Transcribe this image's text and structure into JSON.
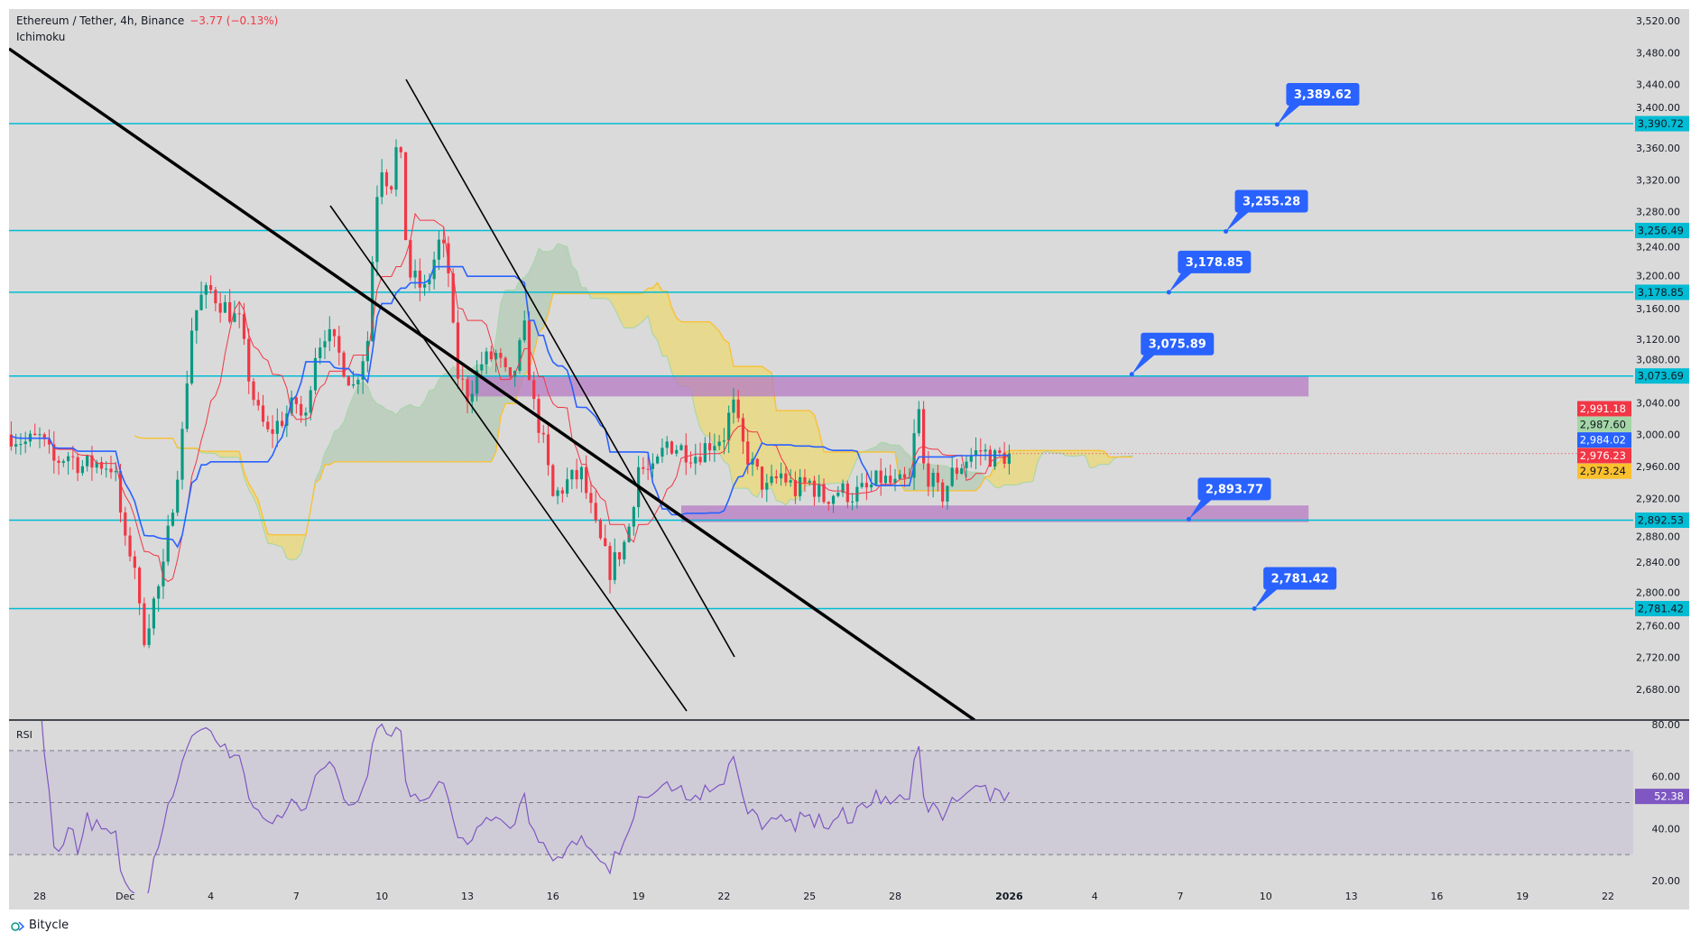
{
  "header": {
    "symbol": "Ethereum / Tether, 4h, Binance",
    "change": "−3.77 (−0.13%)",
    "indicator": "Ichimoku"
  },
  "rsi_pane": {
    "title": "RSI",
    "value_tag": "52.38"
  },
  "brand": {
    "name": "Bitycle",
    "icon": "bitycle-logo-icon"
  },
  "colors": {
    "up": "#089981",
    "down": "#f23645",
    "level": "#00bcd4",
    "callout": "#2962ff",
    "zone": "#b57bc4",
    "rsi": "#7e57c2",
    "tenkan": "#f23645",
    "kijun": "#2962ff",
    "spanA": "#a5d6a7",
    "spanB": "#fbc02d"
  },
  "chart_data": {
    "type": "candlestick",
    "timeframe": "4h",
    "x_start": "2025-11-27",
    "close_path": [
      [
        0,
        3000
      ],
      [
        0.5,
        2990
      ],
      [
        1,
        2995
      ],
      [
        1.5,
        2965
      ],
      [
        2,
        2975
      ],
      [
        2.5,
        2960
      ],
      [
        3,
        2965
      ],
      [
        3.6,
        2960
      ],
      [
        4,
        2860
      ],
      [
        4.3,
        2850
      ],
      [
        4.6,
        2740
      ],
      [
        5,
        2790
      ],
      [
        5.3,
        2820
      ],
      [
        5.6,
        2900
      ],
      [
        6,
        3000
      ],
      [
        6.3,
        3130
      ],
      [
        6.6,
        3170
      ],
      [
        7,
        3180
      ],
      [
        7.5,
        3160
      ],
      [
        8,
        3140
      ],
      [
        8.3,
        3080
      ],
      [
        8.6,
        3030
      ],
      [
        9,
        3000
      ],
      [
        9.5,
        3020
      ],
      [
        10,
        3040
      ],
      [
        10.3,
        3010
      ],
      [
        10.6,
        3100
      ],
      [
        11,
        3130
      ],
      [
        11.5,
        3100
      ],
      [
        12,
        3060
      ],
      [
        12.5,
        3120
      ],
      [
        12.8,
        3300
      ],
      [
        13,
        3340
      ],
      [
        13.3,
        3310
      ],
      [
        13.6,
        3380
      ],
      [
        13.8,
        3260
      ],
      [
        14,
        3200
      ],
      [
        14.5,
        3180
      ],
      [
        15,
        3240
      ],
      [
        15.3,
        3220
      ],
      [
        15.6,
        3080
      ],
      [
        16,
        3050
      ],
      [
        16.5,
        3090
      ],
      [
        17,
        3100
      ],
      [
        17.5,
        3060
      ],
      [
        18,
        3130
      ],
      [
        18.3,
        3040
      ],
      [
        18.6,
        3000
      ],
      [
        19,
        2920
      ],
      [
        19.5,
        2940
      ],
      [
        20,
        2950
      ],
      [
        20.5,
        2880
      ],
      [
        21,
        2830
      ],
      [
        21.3,
        2850
      ],
      [
        21.6,
        2870
      ],
      [
        22,
        2960
      ],
      [
        22.5,
        2950
      ],
      [
        23,
        2990
      ],
      [
        24,
        2975
      ],
      [
        24.5,
        2990
      ],
      [
        25,
        3000
      ],
      [
        25.3,
        3040
      ],
      [
        25.6,
        2990
      ],
      [
        26,
        2960
      ],
      [
        26.5,
        2930
      ],
      [
        27,
        2950
      ],
      [
        27.5,
        2930
      ],
      [
        28,
        2940
      ],
      [
        28.5,
        2920
      ],
      [
        29,
        2930
      ],
      [
        29.5,
        2925
      ],
      [
        30,
        2930
      ],
      [
        30.5,
        2945
      ],
      [
        31,
        2935
      ],
      [
        31.5,
        2940
      ],
      [
        31.8,
        3040
      ],
      [
        32,
        2960
      ],
      [
        32.3,
        2940
      ],
      [
        32.6,
        2920
      ],
      [
        33,
        2950
      ],
      [
        33.5,
        2970
      ],
      [
        34,
        2980
      ],
      [
        34.5,
        2970
      ],
      [
        35,
        2976.23
      ]
    ],
    "ylim": [
      2660,
      3530
    ],
    "y_ticks": [
      "3,520.00",
      "3,480.00",
      "3,440.00",
      "3,400.00",
      "3,360.00",
      "3,320.00",
      "3,280.00",
      "3,240.00",
      "3,200.00",
      "3,160.00",
      "3,120.00",
      "3,080.00",
      "3,040.00",
      "3,000.00",
      "2,960.00",
      "2,920.00",
      "2,880.00",
      "2,840.00",
      "2,800.00",
      "2,760.00",
      "2,720.00",
      "2,680.00"
    ],
    "x_ticks": [
      {
        "d": 1,
        "label": "28"
      },
      {
        "d": 4,
        "label": "Dec"
      },
      {
        "d": 7,
        "label": "4"
      },
      {
        "d": 10,
        "label": "7"
      },
      {
        "d": 13,
        "label": "10"
      },
      {
        "d": 16,
        "label": "13"
      },
      {
        "d": 19,
        "label": "16"
      },
      {
        "d": 22,
        "label": "19"
      },
      {
        "d": 25,
        "label": "22"
      },
      {
        "d": 28,
        "label": "25"
      },
      {
        "d": 31,
        "label": "28"
      },
      {
        "d": 35,
        "label": "2026"
      },
      {
        "d": 38,
        "label": "4"
      },
      {
        "d": 41,
        "label": "7"
      },
      {
        "d": 44,
        "label": "10"
      },
      {
        "d": 47,
        "label": "13"
      },
      {
        "d": 50,
        "label": "16"
      },
      {
        "d": 53,
        "label": "19"
      },
      {
        "d": 56,
        "label": "22"
      }
    ],
    "levels": [
      {
        "price": 3390.72,
        "label": "3,390.72"
      },
      {
        "price": 3256.49,
        "label": "3,256.49"
      },
      {
        "price": 3178.85,
        "label": "3,178.85"
      },
      {
        "price": 3073.69,
        "label": "3,073.69"
      },
      {
        "price": 2892.53,
        "label": "2,892.53"
      },
      {
        "price": 2781.42,
        "label": "2,781.42"
      }
    ],
    "zones": [
      {
        "top": 3073.69,
        "bottom": 3048,
        "from_d": 16,
        "to_d": 45.5
      },
      {
        "top": 2911,
        "bottom": 2890,
        "from_d": 23.5,
        "to_d": 45.5
      }
    ],
    "callouts": [
      {
        "price": 3389.62,
        "label": "3,389.62",
        "d": 44.4
      },
      {
        "price": 3255.28,
        "label": "3,255.28",
        "d": 42.6
      },
      {
        "price": 3178.85,
        "label": "3,178.85",
        "d": 40.6
      },
      {
        "price": 3075.89,
        "label": "3,075.89",
        "d": 39.3
      },
      {
        "price": 2893.77,
        "label": "2,893.77",
        "d": 41.3
      },
      {
        "price": 2781.42,
        "label": "2,781.42",
        "d": 43.6
      }
    ],
    "price_tags": [
      {
        "price": 2991.18,
        "label": "2,991.18",
        "bg": "#f23645",
        "fg": "#ffffff"
      },
      {
        "price": 2987.6,
        "label": "2,987.60",
        "bg": "#a5d6a7",
        "fg": "#131722"
      },
      {
        "price": 2984.02,
        "label": "2,984.02",
        "bg": "#2962ff",
        "fg": "#ffffff"
      },
      {
        "price": 2976.23,
        "label": "2,976.23",
        "bg": "#f23645",
        "fg": "#ffffff"
      },
      {
        "price": 2973.24,
        "label": "2,973.24",
        "bg": "#fbc02d",
        "fg": "#131722"
      }
    ],
    "last_price": 2976.23,
    "rsi": {
      "ylim": [
        20,
        80
      ],
      "bands": [
        70,
        50,
        30
      ],
      "ticks": [
        "80.00",
        "60.00",
        "40.00",
        "20.00"
      ],
      "last": 52.38,
      "period": 14
    }
  }
}
